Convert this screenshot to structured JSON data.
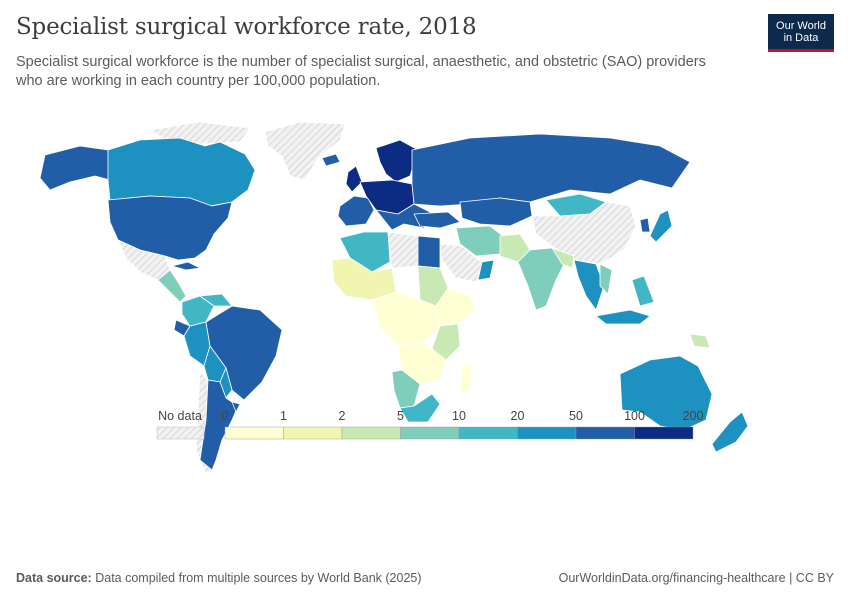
{
  "header": {
    "title": "Specialist surgical workforce rate, 2018",
    "subtitle": "Specialist surgical workforce is the number of specialist surgical, anaesthetic, and obstetric (SAO) providers who are working in each country per 100,000 population."
  },
  "logo": {
    "line1": "Our World",
    "line2": "in Data"
  },
  "legend": {
    "no_data_label": "No data",
    "bins": [
      {
        "label": "0",
        "color": "#ffffd4"
      },
      {
        "label": "1",
        "color": "#f0f5b0"
      },
      {
        "label": "2",
        "color": "#c8e9b4"
      },
      {
        "label": "5",
        "color": "#7fcdbb"
      },
      {
        "label": "10",
        "color": "#41b6c4"
      },
      {
        "label": "20",
        "color": "#1d91c0"
      },
      {
        "label": "50",
        "color": "#225ea8"
      },
      {
        "label": "100",
        "color": "#0c2c84"
      }
    ],
    "last_label": "200"
  },
  "colors": {
    "no_data": "#e4e4e4",
    "land_border": "#ffffff"
  },
  "footer": {
    "source_label": "Data source:",
    "source_text": "Data compiled from multiple sources by World Bank (2025)",
    "link_text": "OurWorldinData.org/financing-healthcare | CC BY"
  }
}
